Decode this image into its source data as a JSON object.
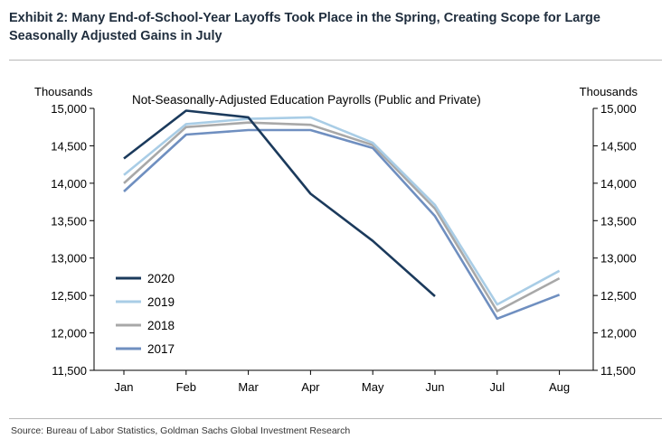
{
  "exhibit_title": "Exhibit 2: Many End-of-School-Year Layoffs Took Place in the Spring, Creating Scope for Large Seasonally Adjusted Gains in July",
  "source": "Source: Bureau of Labor Statistics, Goldman Sachs Global Investment Research",
  "chart_data": {
    "type": "line",
    "title": "Not-Seasonally-Adjusted Education Payrolls (Public and Private)",
    "y_unit_left": "Thousands",
    "y_unit_right": "Thousands",
    "categories": [
      "Jan",
      "Feb",
      "Mar",
      "Apr",
      "May",
      "Jun",
      "Jul",
      "Aug"
    ],
    "ylim": [
      11500,
      15000
    ],
    "yticks": [
      11500,
      12000,
      12500,
      13000,
      13500,
      14000,
      14500,
      15000
    ],
    "ytick_labels": [
      "11,500",
      "12,000",
      "12,500",
      "13,000",
      "13,500",
      "14,000",
      "14,500",
      "15,000"
    ],
    "grid": false,
    "legend_position": "bottom-left",
    "series": [
      {
        "name": "2020",
        "color": "#1b3a5c",
        "values": [
          14330,
          14970,
          14880,
          13860,
          13230,
          12490,
          null,
          null
        ]
      },
      {
        "name": "2019",
        "color": "#a9cde6",
        "values": [
          14110,
          14790,
          14860,
          14880,
          14540,
          13710,
          12380,
          12830
        ]
      },
      {
        "name": "2018",
        "color": "#a8a8a8",
        "values": [
          14000,
          14750,
          14810,
          14780,
          14510,
          13660,
          12290,
          12730
        ]
      },
      {
        "name": "2017",
        "color": "#6f8fc0",
        "values": [
          13890,
          14650,
          14710,
          14710,
          14470,
          13560,
          12190,
          12510
        ]
      }
    ]
  }
}
